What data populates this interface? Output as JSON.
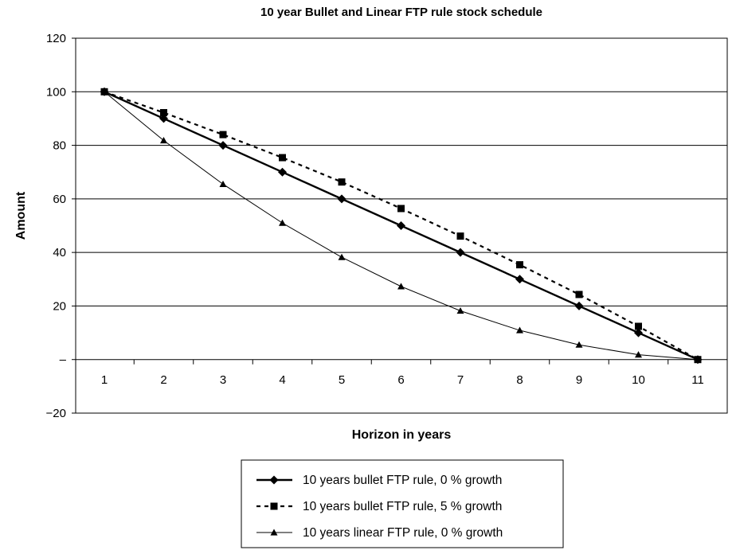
{
  "chart_data": {
    "type": "line",
    "title": "10 year Bullet and Linear FTP rule stock schedule",
    "xlabel": "Horizon in years",
    "ylabel": "Amount",
    "x": [
      1,
      2,
      3,
      4,
      5,
      6,
      7,
      8,
      9,
      10,
      11
    ],
    "x_tick_labels": [
      "1",
      "2",
      "3",
      "4",
      "5",
      "6",
      "7",
      "8",
      "9",
      "10",
      "11"
    ],
    "ylim": [
      -20,
      120
    ],
    "y_ticks": [
      -20,
      0,
      20,
      40,
      60,
      80,
      100,
      120
    ],
    "y_tick_labels": [
      "−20",
      "–",
      "20",
      "40",
      "60",
      "80",
      "100",
      "120"
    ],
    "grid": "horizontal",
    "legend_position": "bottom",
    "series": [
      {
        "name": "10 years bullet FTP rule, 0 % growth",
        "values": [
          100,
          90,
          80,
          70,
          60,
          50,
          40,
          30,
          20,
          10,
          0
        ],
        "style": "solid-thick",
        "marker": "diamond",
        "color": "#000000"
      },
      {
        "name": "10 years bullet FTP rule, 5 % growth",
        "values": [
          100,
          92.2,
          84,
          75.4,
          66.3,
          56.4,
          46.1,
          35.4,
          24.3,
          12.4,
          0
        ],
        "style": "dashed",
        "marker": "square",
        "color": "#000000"
      },
      {
        "name": "10 years linear FTP rule, 0 % growth",
        "values": [
          100,
          81.8,
          65.5,
          51,
          38.2,
          27.3,
          18.2,
          10.9,
          5.5,
          1.8,
          0
        ],
        "style": "solid-thin",
        "marker": "triangle",
        "color": "#000000"
      }
    ]
  }
}
